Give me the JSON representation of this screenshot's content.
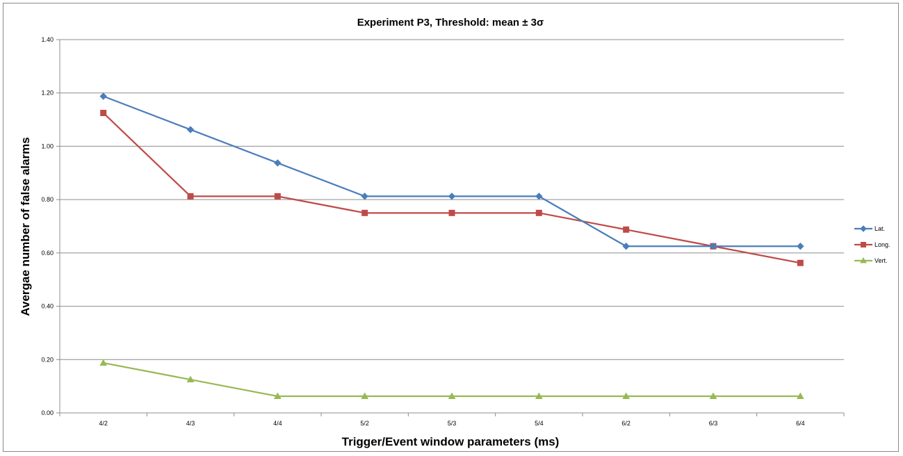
{
  "chart_data": {
    "type": "line",
    "title": "Experiment P3, Threshold: mean ± 3σ",
    "xlabel": "Trigger/Event window parameters (ms)",
    "ylabel": "Avergae number of false alarms",
    "categories": [
      "4/2",
      "4/3",
      "4/4",
      "5/2",
      "5/3",
      "5/4",
      "6/2",
      "6/3",
      "6/4"
    ],
    "ylim": [
      0,
      1.4
    ],
    "ytick_step": 0.2,
    "ytick_labels": [
      "0.00",
      "0.20",
      "0.40",
      "0.60",
      "0.80",
      "1.00",
      "1.20",
      "1.40"
    ],
    "grid": "horizontal",
    "legend_position": "right",
    "series": [
      {
        "name": "Lat.",
        "color": "#4a7ebb",
        "marker": "diamond",
        "values": [
          1.1875,
          1.0625,
          0.9375,
          0.8125,
          0.8125,
          0.8125,
          0.625,
          0.625,
          0.625
        ]
      },
      {
        "name": "Long.",
        "color": "#be4b48",
        "marker": "square",
        "values": [
          1.125,
          0.8125,
          0.8125,
          0.75,
          0.75,
          0.75,
          0.6875,
          0.625,
          0.5625
        ]
      },
      {
        "name": "Vert.",
        "color": "#98b954",
        "marker": "triangle",
        "values": [
          0.1875,
          0.125,
          0.0625,
          0.0625,
          0.0625,
          0.0625,
          0.0625,
          0.0625,
          0.0625
        ]
      }
    ]
  }
}
